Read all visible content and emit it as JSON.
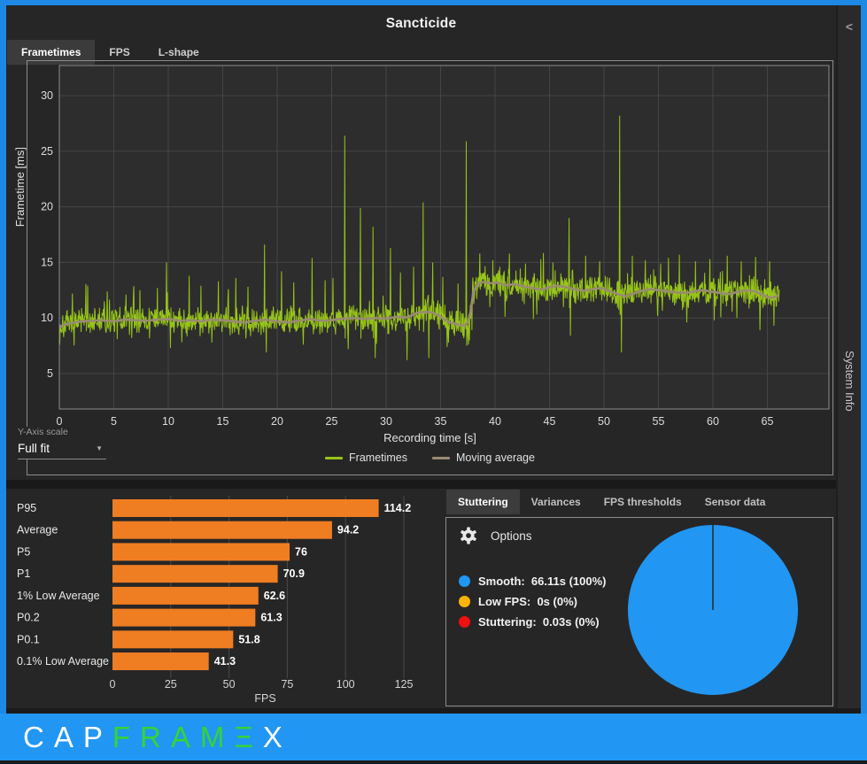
{
  "ui": {
    "title": "Sancticide",
    "top_tabs": [
      {
        "label": "Frametimes",
        "active": true
      },
      {
        "label": "FPS",
        "active": false
      },
      {
        "label": "L-shape",
        "active": false
      }
    ],
    "y_axis_scale": {
      "label": "Y-Axis scale",
      "value": "Full fit"
    },
    "bottom_tabs": [
      {
        "label": "Stuttering",
        "active": true
      },
      {
        "label": "Variances",
        "active": false
      },
      {
        "label": "FPS thresholds",
        "active": false
      },
      {
        "label": "Sensor data",
        "active": false
      }
    ],
    "options_label": "Options",
    "side_panel_label": "System Info",
    "icons": {
      "caret": "▼",
      "collapse": "<",
      "gear": "gear-icon"
    },
    "logo": {
      "bar_color": "#2196f3",
      "segments": [
        {
          "text": "CAP",
          "color": "#ffffff"
        },
        {
          "text": "FRAMΞ",
          "color": "#35d435"
        },
        {
          "text": "X",
          "color": "#ffffff"
        }
      ]
    },
    "colors": {
      "accent_blue": "#2196f3",
      "panel_border": "#8c8c8c",
      "background": "#262626"
    }
  },
  "chart_data": [
    {
      "id": "frametimes",
      "type": "line",
      "xlabel": "Recording time [s]",
      "ylabel": "Frametime [ms]",
      "xlim": [
        0,
        70.6
      ],
      "ylim": [
        1.8,
        32.7
      ],
      "xticks": [
        0,
        5,
        10,
        15,
        20,
        25,
        30,
        35,
        40,
        45,
        50,
        55,
        60,
        65
      ],
      "yticks": [
        5,
        10,
        15,
        20,
        25,
        30
      ],
      "grid": true,
      "legend_position": "bottom",
      "series": [
        {
          "name": "Frametimes",
          "color": "#97c419",
          "synthesis": {
            "dt": 0.04,
            "end": 66.11,
            "seed": 7,
            "amp_before": 1.5,
            "amp_after": 1.7,
            "shift_t": 37.5
          },
          "spikes_up": [
            [
              1.2,
              12.2
            ],
            [
              2.6,
              12.9
            ],
            [
              4.4,
              12.4
            ],
            [
              6.1,
              12.1
            ],
            [
              7.4,
              12.5
            ],
            [
              9.0,
              12.7
            ],
            [
              9.85,
              15.0
            ],
            [
              11.9,
              13.8
            ],
            [
              13.0,
              12.9
            ],
            [
              14.6,
              13.3
            ],
            [
              15.5,
              12.6
            ],
            [
              16.2,
              13.6
            ],
            [
              17.3,
              12.8
            ],
            [
              18.85,
              16.6
            ],
            [
              20.4,
              14.2
            ],
            [
              21.5,
              13.2
            ],
            [
              23.2,
              15.4
            ],
            [
              24.4,
              13.4
            ],
            [
              25.1,
              13.6
            ],
            [
              26.2,
              26.4
            ],
            [
              27.65,
              19.9
            ],
            [
              28.8,
              18.2
            ],
            [
              30.4,
              16.3
            ],
            [
              31.3,
              14.1
            ],
            [
              32.5,
              14.6
            ],
            [
              33.4,
              20.4
            ],
            [
              34.3,
              15.0
            ],
            [
              35.2,
              13.7
            ],
            [
              36.6,
              13.1
            ],
            [
              37.35,
              25.9
            ],
            [
              38.6,
              15.8
            ],
            [
              39.8,
              15.2
            ],
            [
              41.3,
              15.8
            ],
            [
              42.8,
              14.9
            ],
            [
              44.2,
              15.3
            ],
            [
              45.3,
              15.0
            ],
            [
              46.8,
              19.0
            ],
            [
              48.3,
              15.6
            ],
            [
              49.6,
              15.1
            ],
            [
              51.45,
              28.2
            ],
            [
              52.6,
              15.6
            ],
            [
              53.8,
              15.2
            ],
            [
              55.2,
              14.9
            ],
            [
              56.9,
              15.7
            ],
            [
              58.4,
              15.1
            ],
            [
              59.7,
              15.3
            ],
            [
              61.3,
              15.6
            ],
            [
              62.6,
              15.1
            ],
            [
              63.9,
              15.5
            ],
            [
              65.2,
              15.1
            ]
          ],
          "spikes_down": [
            [
              0.05,
              7.6
            ],
            [
              5.3,
              8.1
            ],
            [
              10.2,
              7.3
            ],
            [
              14.0,
              7.8
            ],
            [
              19.0,
              6.9
            ],
            [
              22.4,
              7.6
            ],
            [
              26.5,
              7.2
            ],
            [
              29.0,
              6.4
            ],
            [
              31.9,
              6.2
            ],
            [
              33.9,
              6.4
            ],
            [
              35.6,
              7.4
            ],
            [
              37.55,
              7.6
            ],
            [
              40.9,
              10.1
            ],
            [
              43.5,
              9.9
            ],
            [
              46.9,
              8.4
            ],
            [
              51.6,
              6.9
            ],
            [
              54.9,
              10.2
            ],
            [
              57.6,
              9.6
            ],
            [
              60.1,
              9.8
            ],
            [
              62.2,
              10.0
            ],
            [
              64.3,
              8.9
            ],
            [
              65.6,
              9.3
            ]
          ]
        },
        {
          "name": "Moving average",
          "color": "#9a8a74",
          "points": [
            [
              0,
              9.2
            ],
            [
              0.8,
              9.5
            ],
            [
              2,
              9.7
            ],
            [
              3,
              9.75
            ],
            [
              4,
              9.8
            ],
            [
              5,
              9.7
            ],
            [
              6,
              9.85
            ],
            [
              7,
              9.8
            ],
            [
              8,
              9.75
            ],
            [
              9,
              9.85
            ],
            [
              10,
              9.9
            ],
            [
              11,
              9.75
            ],
            [
              12,
              9.8
            ],
            [
              13,
              9.7
            ],
            [
              14,
              9.85
            ],
            [
              15,
              9.8
            ],
            [
              16,
              9.7
            ],
            [
              17,
              9.6
            ],
            [
              18,
              9.75
            ],
            [
              19,
              9.85
            ],
            [
              20,
              9.7
            ],
            [
              21,
              9.6
            ],
            [
              22,
              9.75
            ],
            [
              23,
              9.9
            ],
            [
              24,
              9.75
            ],
            [
              25,
              9.8
            ],
            [
              26,
              9.95
            ],
            [
              27,
              10.0
            ],
            [
              28,
              9.9
            ],
            [
              29,
              10.0
            ],
            [
              30,
              9.95
            ],
            [
              31,
              10.1
            ],
            [
              32,
              10.05
            ],
            [
              32.8,
              10.45
            ],
            [
              33.5,
              10.55
            ],
            [
              34.2,
              10.5
            ],
            [
              34.8,
              10.25
            ],
            [
              35.3,
              9.9
            ],
            [
              35.8,
              9.6
            ],
            [
              36.3,
              9.5
            ],
            [
              36.9,
              9.35
            ],
            [
              37.4,
              9.3
            ],
            [
              37.7,
              10.2
            ],
            [
              38.0,
              12.3
            ],
            [
              38.4,
              13.1
            ],
            [
              39,
              13.25
            ],
            [
              39.6,
              13.1
            ],
            [
              40.2,
              13.2
            ],
            [
              41,
              12.95
            ],
            [
              41.8,
              13.05
            ],
            [
              42.6,
              12.85
            ],
            [
              43.4,
              12.7
            ],
            [
              44.2,
              12.55
            ],
            [
              45,
              12.75
            ],
            [
              45.8,
              12.9
            ],
            [
              46.6,
              12.75
            ],
            [
              47.4,
              12.55
            ],
            [
              48.2,
              12.45
            ],
            [
              49,
              12.6
            ],
            [
              49.8,
              12.7
            ],
            [
              50.6,
              12.4
            ],
            [
              51.4,
              12.1
            ],
            [
              52,
              11.95
            ],
            [
              52.7,
              12.2
            ],
            [
              53.5,
              12.45
            ],
            [
              54.3,
              12.6
            ],
            [
              55.1,
              12.5
            ],
            [
              55.9,
              12.4
            ],
            [
              56.7,
              12.3
            ],
            [
              57.5,
              12.25
            ],
            [
              58.3,
              12.4
            ],
            [
              59.1,
              12.5
            ],
            [
              59.9,
              12.35
            ],
            [
              60.7,
              12.25
            ],
            [
              61.5,
              12.15
            ],
            [
              62.3,
              12.35
            ],
            [
              63.1,
              12.5
            ],
            [
              63.9,
              12.4
            ],
            [
              64.7,
              12.0
            ],
            [
              65.4,
              11.8
            ],
            [
              66.11,
              12.05
            ]
          ]
        }
      ]
    },
    {
      "id": "fps_percentiles",
      "type": "bar",
      "orientation": "horizontal",
      "categories": [
        "P95",
        "Average",
        "P5",
        "P1",
        "1% Low Average",
        "P0.2",
        "P0.1",
        "0.1% Low Average"
      ],
      "values": [
        114.2,
        94.2,
        76,
        70.9,
        62.6,
        61.3,
        51.8,
        41.3
      ],
      "xlabel": "FPS",
      "xticks": [
        0,
        25,
        50,
        75,
        100,
        125
      ],
      "xlim": [
        0,
        125
      ],
      "bar_color": "#ef7d22",
      "grid": true
    },
    {
      "id": "stuttering_pie",
      "type": "pie",
      "slices": [
        {
          "label": "Smooth",
          "value_text": "66.11s (100%)",
          "seconds": 66.11,
          "pct": 100,
          "color": "#2196f3"
        },
        {
          "label": "Low FPS",
          "value_text": "0s (0%)",
          "seconds": 0,
          "pct": 0,
          "color": "#ffb300"
        },
        {
          "label": "Stuttering",
          "value_text": "0.03s (0%)",
          "seconds": 0.03,
          "pct": 0,
          "color": "#f01010"
        }
      ]
    }
  ]
}
